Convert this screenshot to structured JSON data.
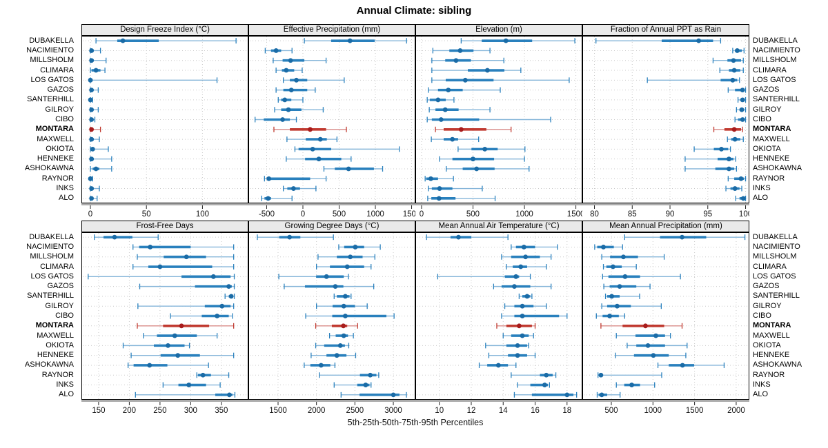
{
  "title": "Annual Climate: sibling",
  "axis_caption": "5th-25th-50th-75th-95th Percentiles",
  "highlight_station": "MONTARA",
  "colors": {
    "blue_dot": "#1a6ba6",
    "blue_mid": "#2980bd",
    "blue_light": "#85b5d9",
    "red_dot": "#a81c1c",
    "red_mid": "#c0392f",
    "red_light": "#d98c88",
    "grid": "#c9c9c9",
    "panel_border": "#000000",
    "header_bg": "#eaeaea",
    "axis_strip": "#adadad",
    "tick": "#222222"
  },
  "chart_data": {
    "type": "dotplot-percentiles",
    "percentiles": [
      5,
      25,
      50,
      75,
      95
    ],
    "stations": [
      "DUBAKELLA",
      "NACIMIENTO",
      "MILLSHOLM",
      "CLIMARA",
      "LOS GATOS",
      "GAZOS",
      "SANTERHILL",
      "GILROY",
      "CIBO",
      "MONTARA",
      "MAXWELL",
      "OKIOTA",
      "HENNEKE",
      "ASHOKAWNA",
      "RAYNOR",
      "INKS",
      "ALO"
    ],
    "panels": [
      {
        "title": "Design Freeze Index (°C)",
        "row": 0,
        "xlim": [
          -8,
          141
        ],
        "ticks": [
          0,
          50,
          100
        ],
        "series": [
          [
            5,
            24,
            29,
            61,
            130
          ],
          [
            0,
            0,
            1,
            3,
            9
          ],
          [
            0,
            0,
            1,
            3,
            14
          ],
          [
            0,
            1,
            5,
            9,
            13
          ],
          [
            0,
            0,
            0,
            2,
            113
          ],
          [
            0,
            0,
            1,
            2,
            7
          ],
          [
            0,
            0,
            0,
            1,
            2
          ],
          [
            0,
            0,
            1,
            2,
            7
          ],
          [
            0,
            0,
            1,
            2,
            4
          ],
          [
            0,
            0,
            1,
            2,
            9
          ],
          [
            0,
            0,
            1,
            3,
            8
          ],
          [
            0,
            1,
            2,
            4,
            16
          ],
          [
            0,
            0,
            1,
            3,
            19
          ],
          [
            0,
            2,
            5,
            8,
            19
          ],
          [
            0,
            0,
            0,
            1,
            2
          ],
          [
            0,
            0,
            1,
            3,
            8
          ],
          [
            0,
            0,
            1,
            2,
            6
          ]
        ]
      },
      {
        "title": "Effective Precipitation (mm)",
        "row": 0,
        "xlim": [
          -752,
          1552
        ],
        "ticks": [
          -500,
          0,
          500,
          1000,
          1500
        ],
        "series": [
          [
            20,
            390,
            650,
            990,
            1430
          ],
          [
            -520,
            -440,
            -370,
            -300,
            -150
          ],
          [
            -410,
            -280,
            -170,
            20,
            320
          ],
          [
            -370,
            -290,
            -230,
            -120,
            -10
          ],
          [
            -270,
            -180,
            -90,
            60,
            570
          ],
          [
            -370,
            -270,
            -160,
            60,
            170
          ],
          [
            -340,
            -300,
            -250,
            -160,
            0
          ],
          [
            -390,
            -300,
            -200,
            -20,
            280
          ],
          [
            -660,
            -540,
            -280,
            -180,
            -90
          ],
          [
            -400,
            -180,
            100,
            320,
            600
          ],
          [
            -220,
            40,
            240,
            330,
            470
          ],
          [
            -110,
            -60,
            135,
            390,
            1330
          ],
          [
            -230,
            30,
            220,
            530,
            665
          ],
          [
            290,
            440,
            630,
            980,
            1100
          ],
          [
            -530,
            -500,
            -470,
            100,
            320
          ],
          [
            -270,
            -215,
            -130,
            -40,
            180
          ],
          [
            -570,
            -530,
            -480,
            -440,
            -150
          ]
        ]
      },
      {
        "title": "Elevation (m)",
        "row": 0,
        "xlim": [
          -60,
          1563
        ],
        "ticks": [
          0,
          500,
          1000,
          1500
        ],
        "series": [
          [
            385,
            585,
            820,
            1075,
            1490
          ],
          [
            110,
            270,
            375,
            505,
            665
          ],
          [
            100,
            230,
            335,
            480,
            800
          ],
          [
            100,
            450,
            640,
            805,
            965
          ],
          [
            100,
            235,
            425,
            700,
            1435
          ],
          [
            65,
            160,
            260,
            400,
            765
          ],
          [
            55,
            80,
            160,
            235,
            315
          ],
          [
            75,
            135,
            230,
            360,
            665
          ],
          [
            55,
            100,
            190,
            560,
            1255
          ],
          [
            135,
            215,
            385,
            630,
            870
          ],
          [
            95,
            215,
            300,
            355,
            555
          ],
          [
            355,
            485,
            615,
            740,
            1005
          ],
          [
            175,
            300,
            500,
            705,
            1000
          ],
          [
            240,
            400,
            535,
            710,
            1045
          ],
          [
            35,
            45,
            90,
            160,
            310
          ],
          [
            65,
            100,
            175,
            300,
            590
          ],
          [
            60,
            95,
            170,
            330,
            715
          ]
        ]
      },
      {
        "title": "Fraction of Annual PPT as Rain",
        "row": 0,
        "xlim": [
          78.4,
          100.5
        ],
        "ticks": [
          80,
          85,
          90,
          95,
          100
        ],
        "series": [
          [
            80.2,
            88.9,
            93.8,
            95.7,
            96.7
          ],
          [
            98.3,
            98.6,
            98.9,
            99.5,
            99.8
          ],
          [
            95.7,
            97.6,
            98.4,
            99.4,
            99.7
          ],
          [
            96.6,
            97.8,
            98.5,
            99.3,
            99.7
          ],
          [
            87.0,
            96.7,
            98.3,
            98.9,
            99.2
          ],
          [
            97.7,
            98.6,
            99.6,
            99.8,
            100
          ],
          [
            99.0,
            99.3,
            99.6,
            99.9,
            100
          ],
          [
            98.8,
            99.2,
            99.5,
            99.8,
            100
          ],
          [
            98.6,
            99.0,
            99.6,
            99.9,
            100
          ],
          [
            95.8,
            97.2,
            98.5,
            99.4,
            99.6
          ],
          [
            97.6,
            98.1,
            98.6,
            99.3,
            99.7
          ],
          [
            93.2,
            95.8,
            96.8,
            97.7,
            98.0
          ],
          [
            92.0,
            96.3,
            97.8,
            98.4,
            98.7
          ],
          [
            92.0,
            96.0,
            97.8,
            98.5,
            98.8
          ],
          [
            97.7,
            98.5,
            99.4,
            99.8,
            100
          ],
          [
            97.4,
            98.0,
            98.6,
            99.2,
            99.5
          ],
          [
            98.7,
            99.2,
            99.7,
            99.9,
            100
          ]
        ]
      },
      {
        "title": "Frost-Free Days",
        "row": 1,
        "xlim": [
          122,
          394
        ],
        "ticks": [
          150,
          200,
          250,
          300,
          350
        ],
        "series": [
          [
            143,
            158,
            176,
            205,
            247
          ],
          [
            206,
            216,
            234,
            300,
            370
          ],
          [
            213,
            256,
            293,
            325,
            370
          ],
          [
            206,
            231,
            250,
            335,
            370
          ],
          [
            133,
            285,
            337,
            365,
            371
          ],
          [
            217,
            307,
            362,
            367,
            371
          ],
          [
            356,
            362,
            366,
            369,
            371
          ],
          [
            214,
            323,
            351,
            365,
            370
          ],
          [
            267,
            318,
            343,
            362,
            368
          ],
          [
            213,
            255,
            285,
            330,
            370
          ],
          [
            223,
            245,
            274,
            310,
            343
          ],
          [
            190,
            240,
            263,
            290,
            298
          ],
          [
            203,
            251,
            279,
            315,
            370
          ],
          [
            198,
            207,
            233,
            262,
            329
          ],
          [
            310,
            312,
            320,
            333,
            362
          ],
          [
            255,
            280,
            297,
            325,
            348
          ],
          [
            210,
            340,
            363,
            368,
            372
          ]
        ]
      },
      {
        "title": "Growing Degree Days (°C)",
        "row": 1,
        "xlim": [
          1114,
          3287
        ],
        "ticks": [
          1500,
          2000,
          2500,
          3000
        ],
        "series": [
          [
            1230,
            1515,
            1650,
            1790,
            2220
          ],
          [
            2290,
            2360,
            2505,
            2620,
            2830
          ],
          [
            2020,
            2265,
            2440,
            2600,
            2760
          ],
          [
            2000,
            2175,
            2400,
            2620,
            2710
          ],
          [
            1510,
            1995,
            2130,
            2355,
            2415
          ],
          [
            1580,
            1850,
            2245,
            2350,
            2745
          ],
          [
            2230,
            2265,
            2375,
            2430,
            2450
          ],
          [
            2000,
            2210,
            2355,
            2500,
            2660
          ],
          [
            1860,
            2205,
            2375,
            2910,
            3010
          ],
          [
            1990,
            2200,
            2350,
            2400,
            2535
          ],
          [
            2170,
            2250,
            2355,
            2410,
            2480
          ],
          [
            1990,
            2100,
            2310,
            2370,
            2420
          ],
          [
            1930,
            2130,
            2265,
            2390,
            2510
          ],
          [
            1840,
            1920,
            2060,
            2180,
            2240
          ],
          [
            2040,
            2565,
            2700,
            2780,
            2810
          ],
          [
            2230,
            2530,
            2640,
            2690,
            2710
          ],
          [
            2320,
            2560,
            3000,
            3080,
            3170
          ]
        ]
      },
      {
        "title": "Mean Annual Air Temperature (°C)",
        "row": 1,
        "xlim": [
          8.5,
          18.96
        ],
        "ticks": [
          10,
          12,
          14,
          16,
          18
        ],
        "series": [
          [
            9.2,
            10.7,
            11.2,
            12.0,
            14.3
          ],
          [
            14.5,
            14.8,
            15.3,
            16.0,
            17.4
          ],
          [
            13.9,
            14.5,
            15.4,
            16.3,
            17.0
          ],
          [
            14.2,
            14.6,
            15.1,
            15.5,
            16.7
          ],
          [
            9.9,
            14.1,
            14.8,
            15.0,
            15.7
          ],
          [
            13.4,
            13.9,
            14.7,
            15.7,
            17.0
          ],
          [
            15.0,
            15.2,
            15.5,
            15.7,
            15.8
          ],
          [
            14.1,
            14.7,
            15.2,
            15.9,
            16.7
          ],
          [
            13.9,
            14.7,
            15.2,
            17.5,
            18.0
          ],
          [
            13.6,
            14.2,
            15.0,
            15.8,
            16.0
          ],
          [
            14.0,
            14.5,
            15.2,
            15.6,
            15.9
          ],
          [
            12.9,
            14.2,
            14.9,
            15.5,
            15.6
          ],
          [
            13.1,
            14.3,
            14.9,
            15.5,
            16.0
          ],
          [
            12.5,
            13.0,
            13.7,
            14.3,
            14.8
          ],
          [
            14.5,
            16.3,
            16.7,
            17.1,
            17.3
          ],
          [
            14.9,
            15.7,
            16.6,
            16.8,
            16.9
          ],
          [
            14.7,
            15.8,
            18.0,
            18.4,
            18.6
          ]
        ]
      },
      {
        "title": "Mean Annual Precipitation (mm)",
        "row": 1,
        "xlim": [
          152,
          2158
        ],
        "ticks": [
          500,
          1000,
          1500,
          2000
        ],
        "series": [
          [
            660,
            1085,
            1350,
            1640,
            2105
          ],
          [
            300,
            330,
            405,
            530,
            635
          ],
          [
            385,
            485,
            645,
            820,
            1135
          ],
          [
            405,
            440,
            520,
            625,
            800
          ],
          [
            395,
            465,
            665,
            845,
            1330
          ],
          [
            410,
            480,
            600,
            800,
            965
          ],
          [
            430,
            450,
            505,
            600,
            840
          ],
          [
            385,
            450,
            570,
            735,
            1100
          ],
          [
            320,
            395,
            480,
            590,
            660
          ],
          [
            375,
            635,
            910,
            1135,
            1350
          ],
          [
            560,
            790,
            1035,
            1145,
            1210
          ],
          [
            690,
            800,
            940,
            1145,
            1410
          ],
          [
            550,
            772,
            1005,
            1190,
            1395
          ],
          [
            1060,
            1190,
            1355,
            1495,
            1855
          ],
          [
            340,
            355,
            375,
            400,
            1105
          ],
          [
            560,
            655,
            745,
            845,
            1020
          ],
          [
            330,
            347,
            385,
            450,
            605
          ]
        ]
      }
    ]
  }
}
